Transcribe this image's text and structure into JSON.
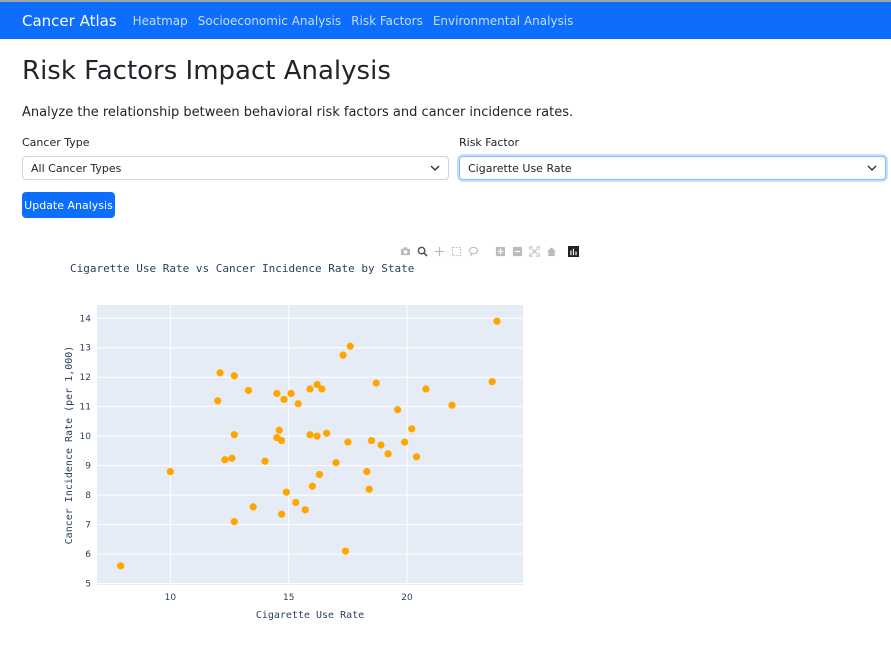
{
  "navbar": {
    "brand": "Cancer Atlas",
    "links": [
      "Heatmap",
      "Socioeconomic Analysis",
      "Risk Factors",
      "Environmental Analysis"
    ]
  },
  "page": {
    "title": "Risk Factors Impact Analysis",
    "description": "Analyze the relationship between behavioral risk factors and cancer incidence rates."
  },
  "form": {
    "cancer_type_label": "Cancer Type",
    "cancer_type_value": "All Cancer Types",
    "risk_factor_label": "Risk Factor",
    "risk_factor_value": "Cigarette Use Rate",
    "update_button": "Update Analysis"
  },
  "modebar": [
    "camera-icon",
    "zoom-icon",
    "pan-icon",
    "box-select-icon",
    "lasso-icon",
    "zoom-in-icon",
    "zoom-out-icon",
    "autoscale-icon",
    "home-icon",
    "plotly-logo-icon"
  ],
  "colors": {
    "primary": "#0d6efd",
    "marker": "#ffa500",
    "plot_bg": "#e5ecf6"
  },
  "chart_data": {
    "type": "scatter",
    "title": "Cigarette Use Rate vs Cancer Incidence Rate by State",
    "xlabel": "Cigarette Use Rate",
    "ylabel": "Cancer Incidence Rate (per 1,000)",
    "xlim": [
      6.9,
      24.9
    ],
    "ylim": [
      4.95,
      14.45
    ],
    "xticks": [
      10,
      15,
      20
    ],
    "yticks": [
      5,
      6,
      7,
      8,
      9,
      10,
      11,
      12,
      13,
      14
    ],
    "grid": true,
    "points": [
      {
        "x": 7.9,
        "y": 5.6
      },
      {
        "x": 10.0,
        "y": 8.8
      },
      {
        "x": 12.0,
        "y": 11.2
      },
      {
        "x": 12.1,
        "y": 12.15
      },
      {
        "x": 12.3,
        "y": 9.2
      },
      {
        "x": 12.6,
        "y": 9.25
      },
      {
        "x": 12.7,
        "y": 12.05
      },
      {
        "x": 12.7,
        "y": 10.05
      },
      {
        "x": 12.7,
        "y": 7.1
      },
      {
        "x": 13.3,
        "y": 11.55
      },
      {
        "x": 13.5,
        "y": 7.6
      },
      {
        "x": 14.0,
        "y": 9.15
      },
      {
        "x": 14.5,
        "y": 11.45
      },
      {
        "x": 14.5,
        "y": 9.95
      },
      {
        "x": 14.6,
        "y": 10.2
      },
      {
        "x": 14.7,
        "y": 9.85
      },
      {
        "x": 14.7,
        "y": 7.35
      },
      {
        "x": 14.8,
        "y": 11.25
      },
      {
        "x": 14.9,
        "y": 8.1
      },
      {
        "x": 15.1,
        "y": 11.45
      },
      {
        "x": 15.3,
        "y": 7.75
      },
      {
        "x": 15.4,
        "y": 11.1
      },
      {
        "x": 15.7,
        "y": 7.5
      },
      {
        "x": 15.9,
        "y": 11.6
      },
      {
        "x": 15.9,
        "y": 10.05
      },
      {
        "x": 16.0,
        "y": 8.3
      },
      {
        "x": 16.2,
        "y": 11.75
      },
      {
        "x": 16.2,
        "y": 10.0
      },
      {
        "x": 16.3,
        "y": 8.7
      },
      {
        "x": 16.4,
        "y": 11.6
      },
      {
        "x": 16.6,
        "y": 10.1
      },
      {
        "x": 17.0,
        "y": 9.1
      },
      {
        "x": 17.3,
        "y": 12.75
      },
      {
        "x": 17.4,
        "y": 6.1
      },
      {
        "x": 17.5,
        "y": 9.8
      },
      {
        "x": 17.6,
        "y": 13.05
      },
      {
        "x": 18.3,
        "y": 8.8
      },
      {
        "x": 18.4,
        "y": 8.2
      },
      {
        "x": 18.5,
        "y": 9.85
      },
      {
        "x": 18.7,
        "y": 11.8
      },
      {
        "x": 18.9,
        "y": 9.7
      },
      {
        "x": 19.2,
        "y": 9.4
      },
      {
        "x": 19.6,
        "y": 10.9
      },
      {
        "x": 19.9,
        "y": 9.8
      },
      {
        "x": 20.2,
        "y": 10.25
      },
      {
        "x": 20.4,
        "y": 9.3
      },
      {
        "x": 20.8,
        "y": 11.6
      },
      {
        "x": 21.9,
        "y": 11.05
      },
      {
        "x": 23.6,
        "y": 11.85
      },
      {
        "x": 23.8,
        "y": 13.9
      }
    ]
  }
}
